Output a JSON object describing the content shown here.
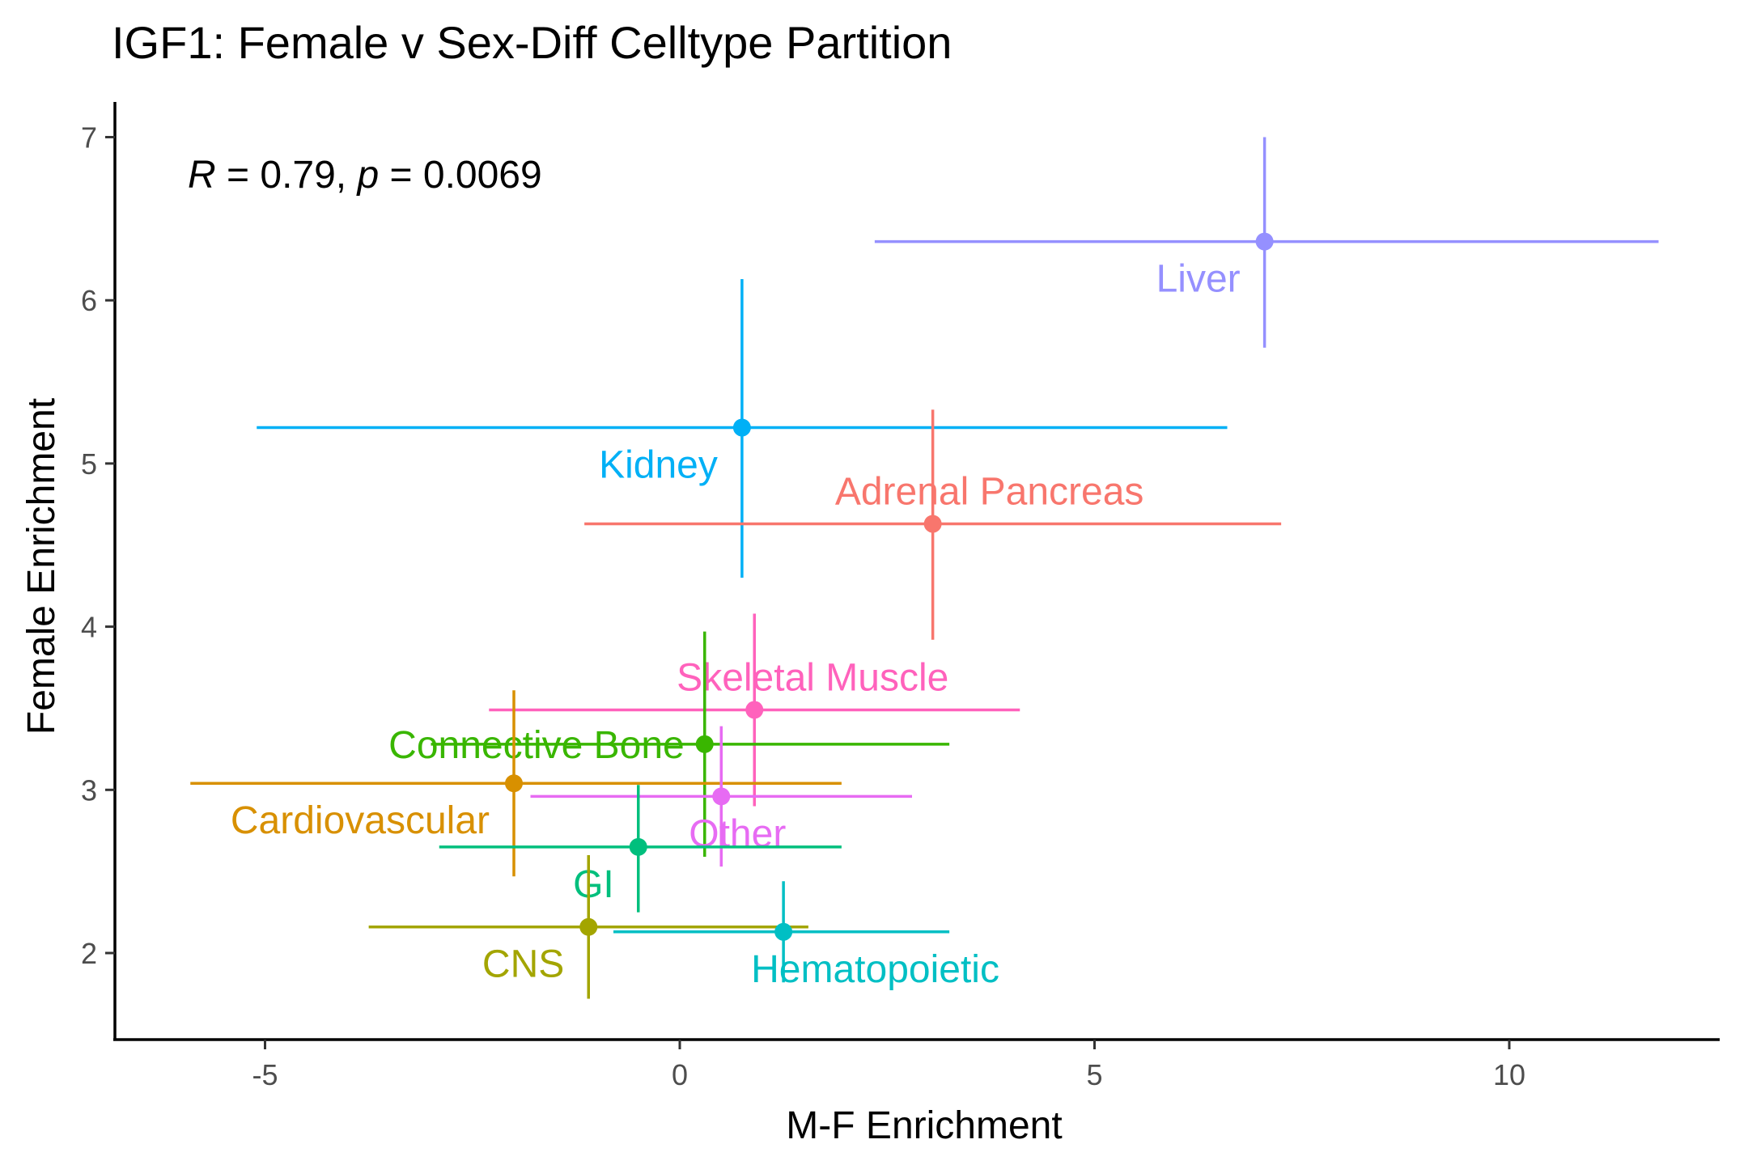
{
  "chart_data": {
    "type": "scatter",
    "title": "IGF1: Female v Sex-Diff Celltype Partition",
    "xlabel": "M-F Enrichment",
    "ylabel": "Female Enrichment",
    "xlim": [
      -6.8,
      12.8
    ],
    "ylim": [
      1.5,
      7.25
    ],
    "x_ticks": [
      -5,
      0,
      5,
      10
    ],
    "y_ticks": [
      2,
      3,
      4,
      5,
      6,
      7
    ],
    "grid": false,
    "legend": "none",
    "annotation": {
      "r_label": "R",
      "r_value": " = 0.79, ",
      "p_label": "p",
      "p_value": " = 0.0069"
    },
    "points": [
      {
        "label": "Liver",
        "color": "#9590FF",
        "x": 7.05,
        "y": 6.36,
        "xmin": 2.35,
        "xmax": 11.8,
        "ymin": 5.71,
        "ymax": 7.0,
        "label_pos": "below-left"
      },
      {
        "label": "Kidney",
        "color": "#00B0F6",
        "x": 0.75,
        "y": 5.22,
        "xmin": -5.1,
        "xmax": 6.6,
        "ymin": 4.3,
        "ymax": 6.13,
        "label_pos": "below-left"
      },
      {
        "label": "Adrenal Pancreas",
        "color": "#F8766D",
        "x": 3.05,
        "y": 4.63,
        "xmin": -1.15,
        "xmax": 7.25,
        "ymin": 3.92,
        "ymax": 5.33,
        "label_pos": "above"
      },
      {
        "label": "Skeletal Muscle",
        "color": "#FF62BC",
        "x": 0.9,
        "y": 3.49,
        "xmin": -2.3,
        "xmax": 4.1,
        "ymin": 2.9,
        "ymax": 4.08,
        "label_pos": "above-right"
      },
      {
        "label": "Connective Bone",
        "color": "#39B600",
        "x": 0.3,
        "y": 3.28,
        "xmin": -3.0,
        "xmax": 3.25,
        "ymin": 2.59,
        "ymax": 3.97,
        "label_pos": "left"
      },
      {
        "label": "Cardiovascular",
        "color": "#D89000",
        "x": -2.0,
        "y": 3.04,
        "xmin": -5.9,
        "xmax": 1.95,
        "ymin": 2.47,
        "ymax": 3.61,
        "label_pos": "below-left"
      },
      {
        "label": "Other",
        "color": "#E76BF3",
        "x": 0.5,
        "y": 2.96,
        "xmin": -1.8,
        "xmax": 2.8,
        "ymin": 2.53,
        "ymax": 3.39,
        "label_pos": "below-right"
      },
      {
        "label": "GI",
        "color": "#00BF7D",
        "x": -0.5,
        "y": 2.65,
        "xmin": -2.9,
        "xmax": 1.95,
        "ymin": 2.25,
        "ymax": 3.03,
        "label_pos": "below-left"
      },
      {
        "label": "CNS",
        "color": "#A3A500",
        "x": -1.1,
        "y": 2.16,
        "xmin": -3.75,
        "xmax": 1.55,
        "ymin": 1.72,
        "ymax": 2.6,
        "label_pos": "below-left"
      },
      {
        "label": "Hematopoietic",
        "color": "#00BFC4",
        "x": 1.25,
        "y": 2.13,
        "xmin": -0.8,
        "xmax": 3.25,
        "ymin": 1.82,
        "ymax": 2.44,
        "label_pos": "below-right"
      }
    ]
  }
}
